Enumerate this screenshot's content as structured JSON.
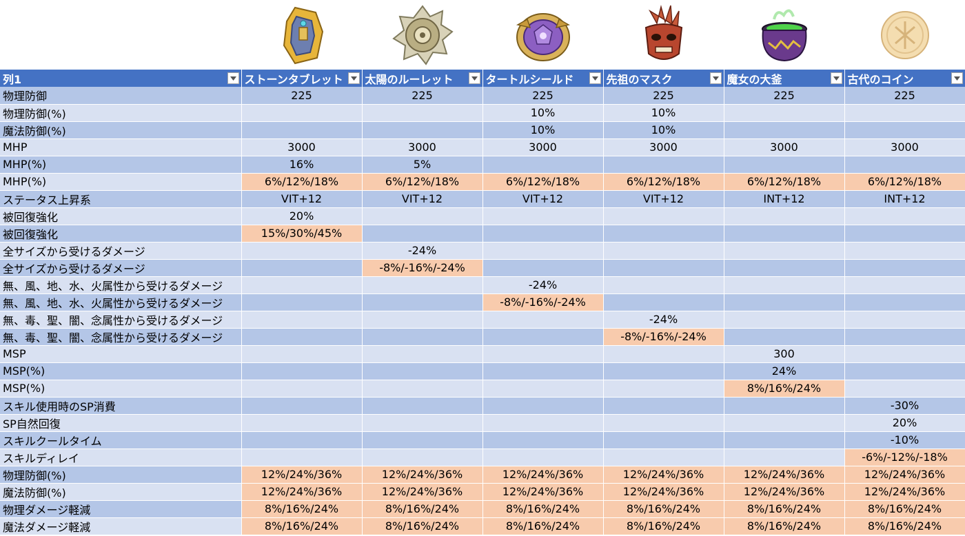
{
  "columns": [
    {
      "name": "列1"
    },
    {
      "name": "ストーンタブレット",
      "icon": "stone-tablet-icon"
    },
    {
      "name": "太陽のルーレット",
      "icon": "sun-roulette-icon"
    },
    {
      "name": "タートルシールド",
      "icon": "turtle-shield-icon"
    },
    {
      "name": "先祖のマスク",
      "icon": "ancestor-mask-icon"
    },
    {
      "name": "魔女の大釜",
      "icon": "witch-cauldron-icon"
    },
    {
      "name": "古代のコイン",
      "icon": "ancient-coin-icon"
    }
  ],
  "colors": {
    "header": "#4472c4",
    "row_band_dark": "#b4c6e7",
    "row_band_light": "#d9e1f2",
    "highlight": "#f8cbad"
  },
  "rows": [
    {
      "label": "物理防御",
      "values": [
        "225",
        "225",
        "225",
        "225",
        "225",
        "225"
      ],
      "hl": [
        0,
        0,
        0,
        0,
        0,
        0
      ]
    },
    {
      "label": "物理防御(%)",
      "values": [
        "",
        "",
        "10%",
        "10%",
        "",
        ""
      ],
      "hl": [
        0,
        0,
        0,
        0,
        0,
        0
      ]
    },
    {
      "label": "魔法防御(%)",
      "values": [
        "",
        "",
        "10%",
        "10%",
        "",
        ""
      ],
      "hl": [
        0,
        0,
        0,
        0,
        0,
        0
      ]
    },
    {
      "label": "MHP",
      "values": [
        "3000",
        "3000",
        "3000",
        "3000",
        "3000",
        "3000"
      ],
      "hl": [
        0,
        0,
        0,
        0,
        0,
        0
      ]
    },
    {
      "label": "MHP(%)",
      "values": [
        "16%",
        "5%",
        "",
        "",
        "",
        ""
      ],
      "hl": [
        0,
        0,
        0,
        0,
        0,
        0
      ]
    },
    {
      "label": "MHP(%)",
      "values": [
        "6%/12%/18%",
        "6%/12%/18%",
        "6%/12%/18%",
        "6%/12%/18%",
        "6%/12%/18%",
        "6%/12%/18%"
      ],
      "hl": [
        1,
        1,
        1,
        1,
        1,
        1
      ]
    },
    {
      "label": "ステータス上昇系",
      "values": [
        "VIT+12",
        "VIT+12",
        "VIT+12",
        "VIT+12",
        "INT+12",
        "INT+12"
      ],
      "hl": [
        0,
        0,
        0,
        0,
        0,
        0
      ]
    },
    {
      "label": "被回復強化",
      "values": [
        "20%",
        "",
        "",
        "",
        "",
        ""
      ],
      "hl": [
        0,
        0,
        0,
        0,
        0,
        0
      ]
    },
    {
      "label": "被回復強化",
      "values": [
        "15%/30%/45%",
        "",
        "",
        "",
        "",
        ""
      ],
      "hl": [
        1,
        0,
        0,
        0,
        0,
        0
      ]
    },
    {
      "label": "全サイズから受けるダメージ",
      "values": [
        "",
        "-24%",
        "",
        "",
        "",
        ""
      ],
      "hl": [
        0,
        0,
        0,
        0,
        0,
        0
      ]
    },
    {
      "label": "全サイズから受けるダメージ",
      "values": [
        "",
        "-8%/-16%/-24%",
        "",
        "",
        "",
        ""
      ],
      "hl": [
        0,
        1,
        0,
        0,
        0,
        0
      ]
    },
    {
      "label": "無、風、地、水、火属性から受けるダメージ",
      "values": [
        "",
        "",
        "-24%",
        "",
        "",
        ""
      ],
      "hl": [
        0,
        0,
        0,
        0,
        0,
        0
      ]
    },
    {
      "label": "無、風、地、水、火属性から受けるダメージ",
      "values": [
        "",
        "",
        "-8%/-16%/-24%",
        "",
        "",
        ""
      ],
      "hl": [
        0,
        0,
        1,
        0,
        0,
        0
      ]
    },
    {
      "label": "無、毒、聖、闇、念属性から受けるダメージ",
      "values": [
        "",
        "",
        "",
        "-24%",
        "",
        ""
      ],
      "hl": [
        0,
        0,
        0,
        0,
        0,
        0
      ]
    },
    {
      "label": "無、毒、聖、闇、念属性から受けるダメージ",
      "values": [
        "",
        "",
        "",
        "-8%/-16%/-24%",
        "",
        ""
      ],
      "hl": [
        0,
        0,
        0,
        1,
        0,
        0
      ]
    },
    {
      "label": "MSP",
      "values": [
        "",
        "",
        "",
        "",
        "300",
        ""
      ],
      "hl": [
        0,
        0,
        0,
        0,
        0,
        0
      ]
    },
    {
      "label": "MSP(%)",
      "values": [
        "",
        "",
        "",
        "",
        "24%",
        ""
      ],
      "hl": [
        0,
        0,
        0,
        0,
        0,
        0
      ]
    },
    {
      "label": "MSP(%)",
      "values": [
        "",
        "",
        "",
        "",
        "8%/16%/24%",
        ""
      ],
      "hl": [
        0,
        0,
        0,
        0,
        1,
        0
      ]
    },
    {
      "label": "スキル使用時のSP消費",
      "values": [
        "",
        "",
        "",
        "",
        "",
        "-30%"
      ],
      "hl": [
        0,
        0,
        0,
        0,
        0,
        0
      ]
    },
    {
      "label": "SP自然回復",
      "values": [
        "",
        "",
        "",
        "",
        "",
        "20%"
      ],
      "hl": [
        0,
        0,
        0,
        0,
        0,
        0
      ]
    },
    {
      "label": "スキルクールタイム",
      "values": [
        "",
        "",
        "",
        "",
        "",
        "-10%"
      ],
      "hl": [
        0,
        0,
        0,
        0,
        0,
        0
      ]
    },
    {
      "label": "スキルディレイ",
      "values": [
        "",
        "",
        "",
        "",
        "",
        "-6%/-12%/-18%"
      ],
      "hl": [
        0,
        0,
        0,
        0,
        0,
        1
      ]
    },
    {
      "label": "物理防御(%)",
      "values": [
        "12%/24%/36%",
        "12%/24%/36%",
        "12%/24%/36%",
        "12%/24%/36%",
        "12%/24%/36%",
        "12%/24%/36%"
      ],
      "hl": [
        1,
        1,
        1,
        1,
        1,
        1
      ]
    },
    {
      "label": "魔法防御(%)",
      "values": [
        "12%/24%/36%",
        "12%/24%/36%",
        "12%/24%/36%",
        "12%/24%/36%",
        "12%/24%/36%",
        "12%/24%/36%"
      ],
      "hl": [
        1,
        1,
        1,
        1,
        1,
        1
      ]
    },
    {
      "label": "物理ダメージ軽減",
      "values": [
        "8%/16%/24%",
        "8%/16%/24%",
        "8%/16%/24%",
        "8%/16%/24%",
        "8%/16%/24%",
        "8%/16%/24%"
      ],
      "hl": [
        1,
        1,
        1,
        1,
        1,
        1
      ]
    },
    {
      "label": "魔法ダメージ軽減",
      "values": [
        "8%/16%/24%",
        "8%/16%/24%",
        "8%/16%/24%",
        "8%/16%/24%",
        "8%/16%/24%",
        "8%/16%/24%"
      ],
      "hl": [
        1,
        1,
        1,
        1,
        1,
        1
      ]
    }
  ]
}
